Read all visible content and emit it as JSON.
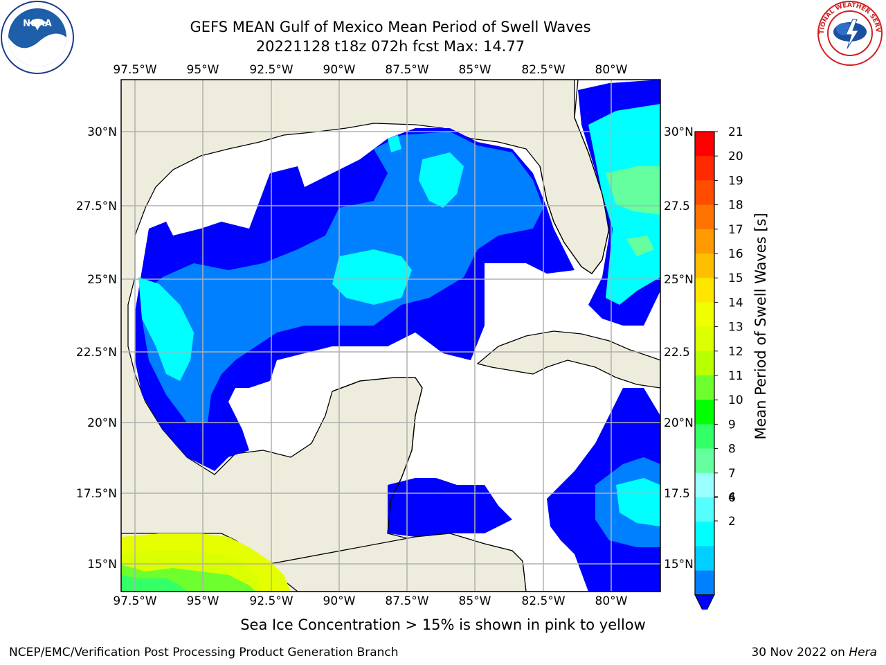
{
  "header": {
    "title_line1": "GEFS MEAN Gulf of Mexico Mean Period of Swell Waves",
    "title_line2": "20221128 t18z 072h fcst   Max: 14.77"
  },
  "logos": {
    "left": {
      "name": "noaa-logo",
      "text": "NOAA"
    },
    "right": {
      "name": "nws-logo",
      "text": "NATIONAL WEATHER SERVICE"
    }
  },
  "map": {
    "lon_labels": [
      "97.5°W",
      "95°W",
      "92.5°W",
      "90°W",
      "87.5°W",
      "85°W",
      "82.5°W",
      "80°W"
    ],
    "lat_labels": [
      "30°N",
      "27.5°N",
      "25°N",
      "22.5°N",
      "20°N",
      "17.5°N",
      "15°N"
    ],
    "lat_labels_right": [
      "30°N",
      "27.5",
      "25°N",
      "22.5",
      "20°N",
      "17.5",
      "15°N"
    ],
    "colors": {
      "land": "#eeecdc",
      "water": "#ffffff",
      "grid": "#b0b0b0"
    }
  },
  "colorbar": {
    "label": "Mean Period of Swell Waves [s]",
    "ticks": [
      "21",
      "20",
      "19",
      "18",
      "17",
      "16",
      "15",
      "14",
      "13",
      "12",
      "11",
      "10",
      "9",
      "8",
      "7",
      "6",
      "4",
      "2"
    ],
    "colors": [
      "#ff0000",
      "#ff2a00",
      "#ff4d00",
      "#ff7300",
      "#ff9a00",
      "#ffbf00",
      "#ffe600",
      "#f0ff00",
      "#d9ff00",
      "#b8ff00",
      "#6dff2e",
      "#00ff00",
      "#33ff66",
      "#66ffa0",
      "#99ffff",
      "#55ffff",
      "#00ffff",
      "#00d0ff",
      "#0080ff"
    ],
    "extend_color": "#0000ff"
  },
  "footer": {
    "note": "Sea Ice Concentration > 15% is shown in pink to yellow",
    "left": "NCEP/EMC/Verification Post Processing Product Generation Branch",
    "right_date": "30 Nov 2022 on ",
    "right_host": "Hera"
  }
}
